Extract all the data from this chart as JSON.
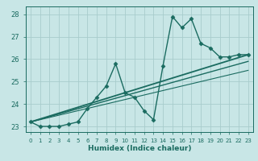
{
  "xlabel": "Humidex (Indice chaleur)",
  "ylabel": "",
  "xlim": [
    -0.5,
    23.5
  ],
  "ylim": [
    22.75,
    28.35
  ],
  "yticks": [
    23,
    24,
    25,
    26,
    27,
    28
  ],
  "xticks": [
    0,
    1,
    2,
    3,
    4,
    5,
    6,
    7,
    8,
    9,
    10,
    11,
    12,
    13,
    14,
    15,
    16,
    17,
    18,
    19,
    20,
    21,
    22,
    23
  ],
  "bg_color": "#c8e6e6",
  "grid_color": "#a8cccc",
  "line_color": "#1a6b60",
  "series": [
    {
      "x": [
        0,
        1,
        2,
        3,
        4,
        5,
        6,
        7,
        8,
        9,
        10,
        11,
        12,
        13,
        14,
        15,
        16,
        17,
        18,
        19,
        20,
        21,
        22,
        23
      ],
      "y": [
        23.2,
        23.0,
        23.0,
        23.0,
        23.1,
        23.2,
        23.8,
        24.3,
        24.8,
        25.8,
        24.5,
        24.3,
        23.7,
        23.3,
        25.7,
        27.9,
        27.4,
        27.8,
        26.7,
        26.5,
        26.1,
        26.1,
        26.2,
        26.2
      ],
      "marker": "D",
      "markersize": 2.5,
      "linewidth": 1.0
    },
    {
      "x": [
        0,
        23
      ],
      "y": [
        23.2,
        26.2
      ],
      "marker": null,
      "markersize": 0,
      "linewidth": 1.3
    },
    {
      "x": [
        0,
        23
      ],
      "y": [
        23.2,
        25.9
      ],
      "marker": null,
      "markersize": 0,
      "linewidth": 1.0
    },
    {
      "x": [
        0,
        23
      ],
      "y": [
        23.2,
        25.5
      ],
      "marker": null,
      "markersize": 0,
      "linewidth": 0.8
    }
  ]
}
